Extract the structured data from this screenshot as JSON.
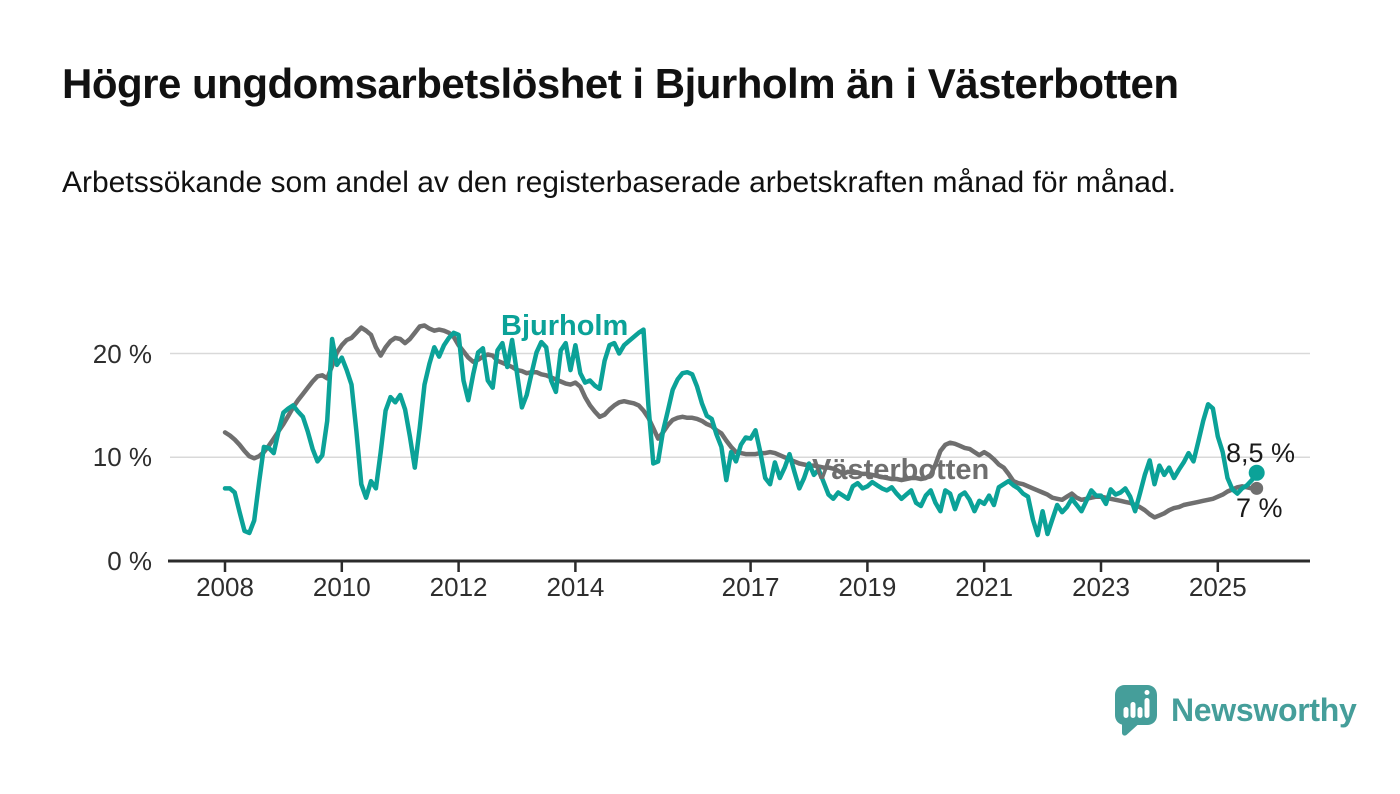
{
  "title": "Högre ungdomsarbetslöshet i Bjurholm än i Västerbotten",
  "subtitle": "Arbetssökande som andel av den registerbaserade arbetskraften månad för månad.",
  "branding": {
    "logo_text": "Newsworthy",
    "logo_icon": "bar-chart-speech-bubble-icon"
  },
  "colors": {
    "bjurholm": "#0ba298",
    "vasterbotten": "#6f6f6f",
    "grid": "#d9d9d9",
    "axis": "#2b2b2b",
    "text": "#111111",
    "brand_teal": "#459e9a"
  },
  "chart_data": {
    "type": "line",
    "unit": "percent",
    "frequency": "monthly",
    "x_start": "2008-01",
    "x_end": "2025-09",
    "grid": "horizontal-only",
    "x_axis": {
      "tick_years": [
        2008,
        2010,
        2012,
        2014,
        2017,
        2019,
        2021,
        2023,
        2025
      ]
    },
    "y_axis": {
      "ticks": [
        {
          "v": 0,
          "label": "0 %"
        },
        {
          "v": 10,
          "label": "10 %"
        },
        {
          "v": 20,
          "label": "20 %"
        }
      ],
      "max": 23
    },
    "series": [
      {
        "name": "Västerbotten",
        "color": "#6f6f6f",
        "end_label": "7 %",
        "last_value": 7.0,
        "values": [
          12.4,
          12.1,
          11.7,
          11.2,
          10.6,
          10.1,
          9.9,
          10.1,
          10.5,
          11.1,
          11.8,
          12.5,
          13.2,
          14.0,
          14.8,
          15.5,
          16.1,
          16.7,
          17.3,
          17.8,
          17.9,
          17.6,
          18.8,
          20.1,
          20.8,
          21.3,
          21.5,
          22.0,
          22.5,
          22.2,
          21.8,
          20.6,
          19.8,
          20.6,
          21.2,
          21.5,
          21.4,
          21.0,
          21.4,
          22.0,
          22.6,
          22.7,
          22.4,
          22.2,
          22.3,
          22.2,
          22.0,
          21.6,
          20.8,
          20.2,
          19.6,
          19.2,
          19.4,
          19.7,
          19.9,
          19.8,
          19.3,
          19.1,
          18.9,
          18.7,
          18.4,
          18.3,
          18.1,
          18.2,
          18.2,
          18.0,
          17.9,
          17.7,
          17.5,
          17.3,
          17.1,
          17.0,
          17.2,
          16.8,
          15.8,
          15.0,
          14.4,
          13.9,
          14.1,
          14.6,
          15.0,
          15.3,
          15.4,
          15.3,
          15.2,
          15.0,
          14.5,
          13.8,
          12.8,
          11.8,
          12.4,
          13.1,
          13.6,
          13.8,
          13.9,
          13.8,
          13.8,
          13.7,
          13.5,
          13.2,
          13.0,
          12.6,
          12.3,
          11.6,
          11.0,
          10.5,
          10.4,
          10.3,
          10.3,
          10.3,
          10.4,
          10.4,
          10.5,
          10.4,
          10.2,
          10.0,
          9.8,
          9.6,
          9.4,
          9.3,
          9.2,
          9.2,
          9.1,
          9.0,
          9.0,
          8.9,
          8.7,
          8.4,
          8.6,
          8.5,
          8.5,
          8.4,
          8.4,
          8.3,
          8.2,
          8.1,
          8.0,
          7.9,
          7.9,
          7.8,
          7.9,
          8.0,
          8.0,
          7.9,
          8.0,
          8.3,
          9.3,
          10.6,
          11.2,
          11.4,
          11.3,
          11.1,
          10.9,
          10.8,
          10.5,
          10.2,
          10.5,
          10.2,
          9.8,
          9.3,
          9.0,
          8.4,
          7.7,
          7.5,
          7.4,
          7.2,
          7.0,
          6.8,
          6.6,
          6.4,
          6.1,
          6.0,
          5.9,
          6.2,
          6.5,
          6.1,
          5.9,
          6.0,
          6.1,
          6.2,
          6.2,
          6.1,
          6.0,
          5.9,
          5.8,
          5.7,
          5.6,
          5.4,
          5.2,
          4.9,
          4.5,
          4.2,
          4.4,
          4.6,
          4.9,
          5.1,
          5.2,
          5.4,
          5.5,
          5.6,
          5.7,
          5.8,
          5.9,
          6.0,
          6.2,
          6.4,
          6.7,
          6.9,
          7.1,
          7.2,
          7.1,
          7.0,
          7.0
        ]
      },
      {
        "name": "Bjurholm",
        "color": "#0ba298",
        "end_label": "8,5 %",
        "last_value": 8.5,
        "values": [
          7.0,
          7.0,
          6.6,
          4.7,
          2.9,
          2.7,
          3.9,
          7.6,
          11.0,
          10.9,
          10.4,
          12.5,
          14.3,
          14.7,
          15.0,
          14.4,
          13.9,
          12.5,
          10.8,
          9.6,
          10.2,
          13.5,
          21.4,
          18.9,
          19.6,
          18.4,
          17.0,
          12.5,
          7.4,
          6.1,
          7.7,
          7.0,
          10.5,
          14.5,
          15.8,
          15.3,
          16.0,
          14.6,
          12.0,
          9.0,
          12.8,
          17.0,
          19.0,
          20.6,
          19.7,
          20.8,
          21.5,
          22.0,
          21.8,
          17.4,
          15.5,
          18.0,
          20.1,
          20.5,
          17.4,
          16.7,
          20.3,
          21.0,
          18.7,
          21.3,
          18.1,
          14.8,
          16.0,
          18.1,
          20.1,
          21.1,
          20.6,
          17.4,
          16.3,
          20.3,
          21.0,
          18.4,
          20.8,
          18.1,
          17.2,
          17.4,
          16.9,
          16.6,
          19.3,
          20.8,
          21.0,
          20.0,
          20.8,
          21.2,
          21.6,
          22.0,
          22.3,
          15.0,
          9.4,
          9.6,
          12.5,
          14.5,
          16.5,
          17.5,
          18.1,
          18.2,
          18.0,
          16.8,
          15.2,
          14.0,
          13.7,
          12.2,
          11.0,
          7.8,
          10.5,
          9.6,
          11.2,
          11.9,
          11.8,
          12.6,
          10.5,
          8.0,
          7.4,
          9.5,
          8.0,
          9.0,
          10.3,
          8.6,
          7.0,
          8.0,
          9.4,
          8.3,
          8.8,
          7.6,
          6.4,
          6.0,
          6.6,
          6.3,
          6.0,
          7.2,
          7.5,
          7.0,
          7.2,
          7.6,
          7.3,
          7.0,
          6.8,
          7.1,
          6.5,
          6.0,
          6.4,
          6.8,
          5.6,
          5.3,
          6.3,
          6.8,
          5.6,
          4.8,
          6.8,
          6.5,
          5.0,
          6.3,
          6.6,
          5.9,
          4.8,
          5.8,
          5.5,
          6.3,
          5.4,
          7.1,
          7.4,
          7.7,
          7.3,
          7.0,
          6.5,
          6.2,
          4.0,
          2.5,
          4.8,
          2.6,
          4.0,
          5.4,
          4.7,
          5.2,
          6.0,
          5.4,
          4.8,
          5.8,
          6.8,
          6.3,
          6.3,
          5.5,
          6.9,
          6.4,
          6.6,
          7.0,
          6.2,
          4.8,
          6.5,
          8.3,
          9.7,
          7.4,
          9.2,
          8.3,
          9.0,
          8.0,
          8.8,
          9.5,
          10.4,
          9.6,
          11.5,
          13.5,
          15.1,
          14.7,
          12.0,
          10.5,
          8.0,
          6.9,
          6.5,
          7.0,
          7.3,
          7.8,
          8.5
        ]
      }
    ]
  }
}
